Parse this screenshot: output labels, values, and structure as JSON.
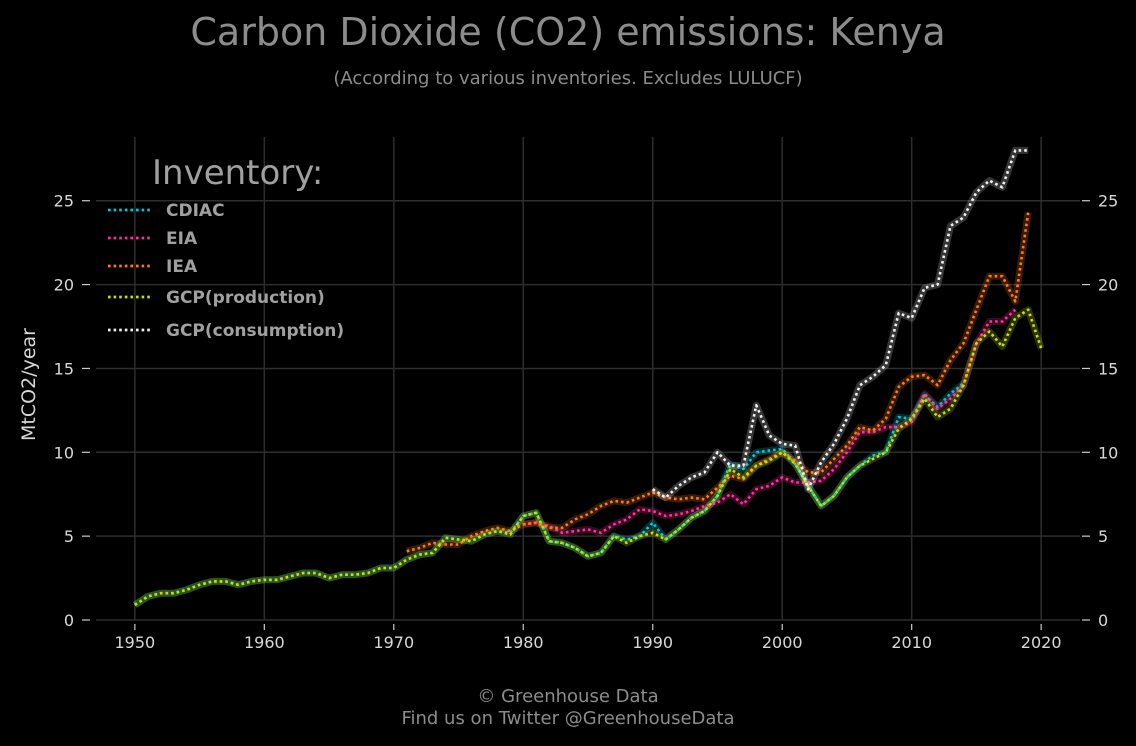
{
  "header": {
    "title": "Carbon Dioxide (CO2) emissions: Kenya",
    "subtitle": "(According to various inventories. Excludes LULUCF)"
  },
  "footer": {
    "line1": "© Greenhouse Data",
    "line2": "Find us on Twitter @GreenhouseData"
  },
  "chart_data": {
    "type": "line",
    "title": "Carbon Dioxide (CO2) emissions: Kenya",
    "subtitle": "(According to various inventories. Excludes LULUCF)",
    "ylabel": "MtCO2/year",
    "xlim": [
      1947,
      2023
    ],
    "ylim": [
      0,
      28.8
    ],
    "x_ticks": [
      1950,
      1960,
      1970,
      1980,
      1990,
      2000,
      2010,
      2020
    ],
    "y_ticks": [
      0,
      5,
      10,
      15,
      20,
      25
    ],
    "grid": true,
    "legend": {
      "title": "Inventory:",
      "position": "top-left"
    },
    "series": [
      {
        "name": "CDIAC",
        "color": "#00c8d8",
        "x": [
          1950,
          1951,
          1952,
          1953,
          1954,
          1955,
          1956,
          1957,
          1958,
          1959,
          1960,
          1961,
          1962,
          1963,
          1964,
          1965,
          1966,
          1967,
          1968,
          1969,
          1970,
          1971,
          1972,
          1973,
          1974,
          1975,
          1976,
          1977,
          1978,
          1979,
          1980,
          1981,
          1982,
          1983,
          1984,
          1985,
          1986,
          1987,
          1988,
          1989,
          1990,
          1991,
          1992,
          1993,
          1994,
          1995,
          1996,
          1997,
          1998,
          1999,
          2000,
          2001,
          2002,
          2003,
          2004,
          2005,
          2006,
          2007,
          2008,
          2009,
          2010,
          2011,
          2012,
          2013,
          2014
        ],
        "y": [
          0.9,
          1.4,
          1.6,
          1.6,
          1.8,
          2.1,
          2.3,
          2.3,
          2.1,
          2.3,
          2.4,
          2.4,
          2.6,
          2.8,
          2.8,
          2.5,
          2.7,
          2.7,
          2.8,
          3.1,
          3.1,
          3.6,
          3.9,
          4.0,
          4.9,
          4.8,
          4.7,
          5.1,
          5.3,
          5.2,
          6.2,
          6.4,
          4.7,
          4.6,
          4.3,
          3.8,
          4.0,
          5.0,
          4.8,
          5.0,
          5.8,
          4.8,
          5.4,
          6.1,
          6.5,
          7.4,
          9.3,
          9.0,
          10.0,
          10.1,
          10.2,
          9.3,
          8.0,
          6.8,
          7.4,
          8.5,
          9.2,
          9.8,
          10.0,
          12.1,
          12.0,
          13.4,
          12.7,
          13.5,
          14.1
        ]
      },
      {
        "name": "EIA",
        "color": "#ff3399",
        "x": [
          1980,
          1981,
          1982,
          1983,
          1984,
          1985,
          1986,
          1987,
          1988,
          1989,
          1990,
          1991,
          1992,
          1993,
          1994,
          1995,
          1996,
          1997,
          1998,
          1999,
          2000,
          2001,
          2002,
          2003,
          2004,
          2005,
          2006,
          2007,
          2008,
          2009,
          2010,
          2011,
          2012,
          2013,
          2014,
          2015,
          2016,
          2017,
          2018
        ],
        "y": [
          5.7,
          5.8,
          5.6,
          5.2,
          5.3,
          5.4,
          5.2,
          5.7,
          6.0,
          6.6,
          6.5,
          6.2,
          6.3,
          6.5,
          6.8,
          7.0,
          7.5,
          6.9,
          7.8,
          8.0,
          8.5,
          8.2,
          8.2,
          8.3,
          9.0,
          10.0,
          11.2,
          11.2,
          11.5,
          11.5,
          11.8,
          13.5,
          12.6,
          13.2,
          14.0,
          16.5,
          17.8,
          17.8,
          18.5
        ]
      },
      {
        "name": "IEA",
        "color": "#ff7a1a",
        "x": [
          1971,
          1972,
          1973,
          1974,
          1975,
          1976,
          1977,
          1978,
          1979,
          1980,
          1981,
          1982,
          1983,
          1984,
          1985,
          1986,
          1987,
          1988,
          1989,
          1990,
          1991,
          1992,
          1993,
          1994,
          1995,
          1996,
          1997,
          1998,
          1999,
          2000,
          2001,
          2002,
          2003,
          2004,
          2005,
          2006,
          2007,
          2008,
          2009,
          2010,
          2011,
          2012,
          2013,
          2014,
          2015,
          2016,
          2017,
          2018,
          2019
        ],
        "y": [
          4.1,
          4.3,
          4.6,
          4.5,
          4.5,
          5.0,
          5.3,
          5.5,
          5.3,
          5.7,
          5.8,
          5.5,
          5.5,
          6.0,
          6.3,
          6.8,
          7.1,
          7.0,
          7.3,
          7.6,
          7.3,
          7.2,
          7.3,
          7.2,
          7.9,
          8.6,
          8.4,
          9.2,
          9.6,
          10.0,
          9.5,
          8.8,
          8.8,
          9.6,
          10.4,
          11.5,
          11.3,
          12.0,
          13.9,
          14.5,
          14.6,
          14.0,
          15.5,
          16.5,
          18.5,
          20.5,
          20.5,
          19.0,
          24.3
        ]
      },
      {
        "name": "GCP(production)",
        "color": "#c8e000",
        "x": [
          1950,
          1951,
          1952,
          1953,
          1954,
          1955,
          1956,
          1957,
          1958,
          1959,
          1960,
          1961,
          1962,
          1963,
          1964,
          1965,
          1966,
          1967,
          1968,
          1969,
          1970,
          1971,
          1972,
          1973,
          1974,
          1975,
          1976,
          1977,
          1978,
          1979,
          1980,
          1981,
          1982,
          1983,
          1984,
          1985,
          1986,
          1987,
          1988,
          1989,
          1990,
          1991,
          1992,
          1993,
          1994,
          1995,
          1996,
          1997,
          1998,
          1999,
          2000,
          2001,
          2002,
          2003,
          2004,
          2005,
          2006,
          2007,
          2008,
          2009,
          2010,
          2011,
          2012,
          2013,
          2014,
          2015,
          2016,
          2017,
          2018,
          2019,
          2020
        ],
        "y": [
          0.9,
          1.4,
          1.6,
          1.6,
          1.8,
          2.1,
          2.3,
          2.3,
          2.1,
          2.3,
          2.4,
          2.4,
          2.6,
          2.8,
          2.8,
          2.5,
          2.7,
          2.7,
          2.8,
          3.1,
          3.1,
          3.6,
          3.9,
          4.0,
          4.9,
          4.8,
          4.7,
          5.1,
          5.3,
          5.1,
          6.2,
          6.4,
          4.7,
          4.6,
          4.3,
          3.8,
          4.0,
          5.0,
          4.6,
          5.0,
          5.2,
          4.8,
          5.4,
          6.1,
          6.5,
          7.4,
          9.0,
          8.5,
          9.2,
          9.5,
          10.0,
          9.3,
          8.0,
          6.8,
          7.4,
          8.5,
          9.2,
          9.6,
          10.0,
          11.4,
          12.0,
          13.2,
          12.1,
          12.6,
          14.0,
          16.5,
          17.2,
          16.3,
          18.0,
          18.5,
          16.2
        ]
      },
      {
        "name": "GCP(consumption)",
        "color": "#f0f0f0",
        "x": [
          1990,
          1991,
          1992,
          1993,
          1994,
          1995,
          1996,
          1997,
          1998,
          1999,
          2000,
          2001,
          2002,
          2003,
          2004,
          2005,
          2006,
          2007,
          2008,
          2009,
          2010,
          2011,
          2012,
          2013,
          2014,
          2015,
          2016,
          2017,
          2018,
          2019
        ],
        "y": [
          7.8,
          7.3,
          8.0,
          8.5,
          8.8,
          10.0,
          9.2,
          9.2,
          12.8,
          11.0,
          10.5,
          10.4,
          7.8,
          9.4,
          10.5,
          12.0,
          14.0,
          14.5,
          15.2,
          18.3,
          18.0,
          19.8,
          20.0,
          23.5,
          24.0,
          25.5,
          26.2,
          25.8,
          28.0,
          28.0
        ]
      }
    ]
  }
}
